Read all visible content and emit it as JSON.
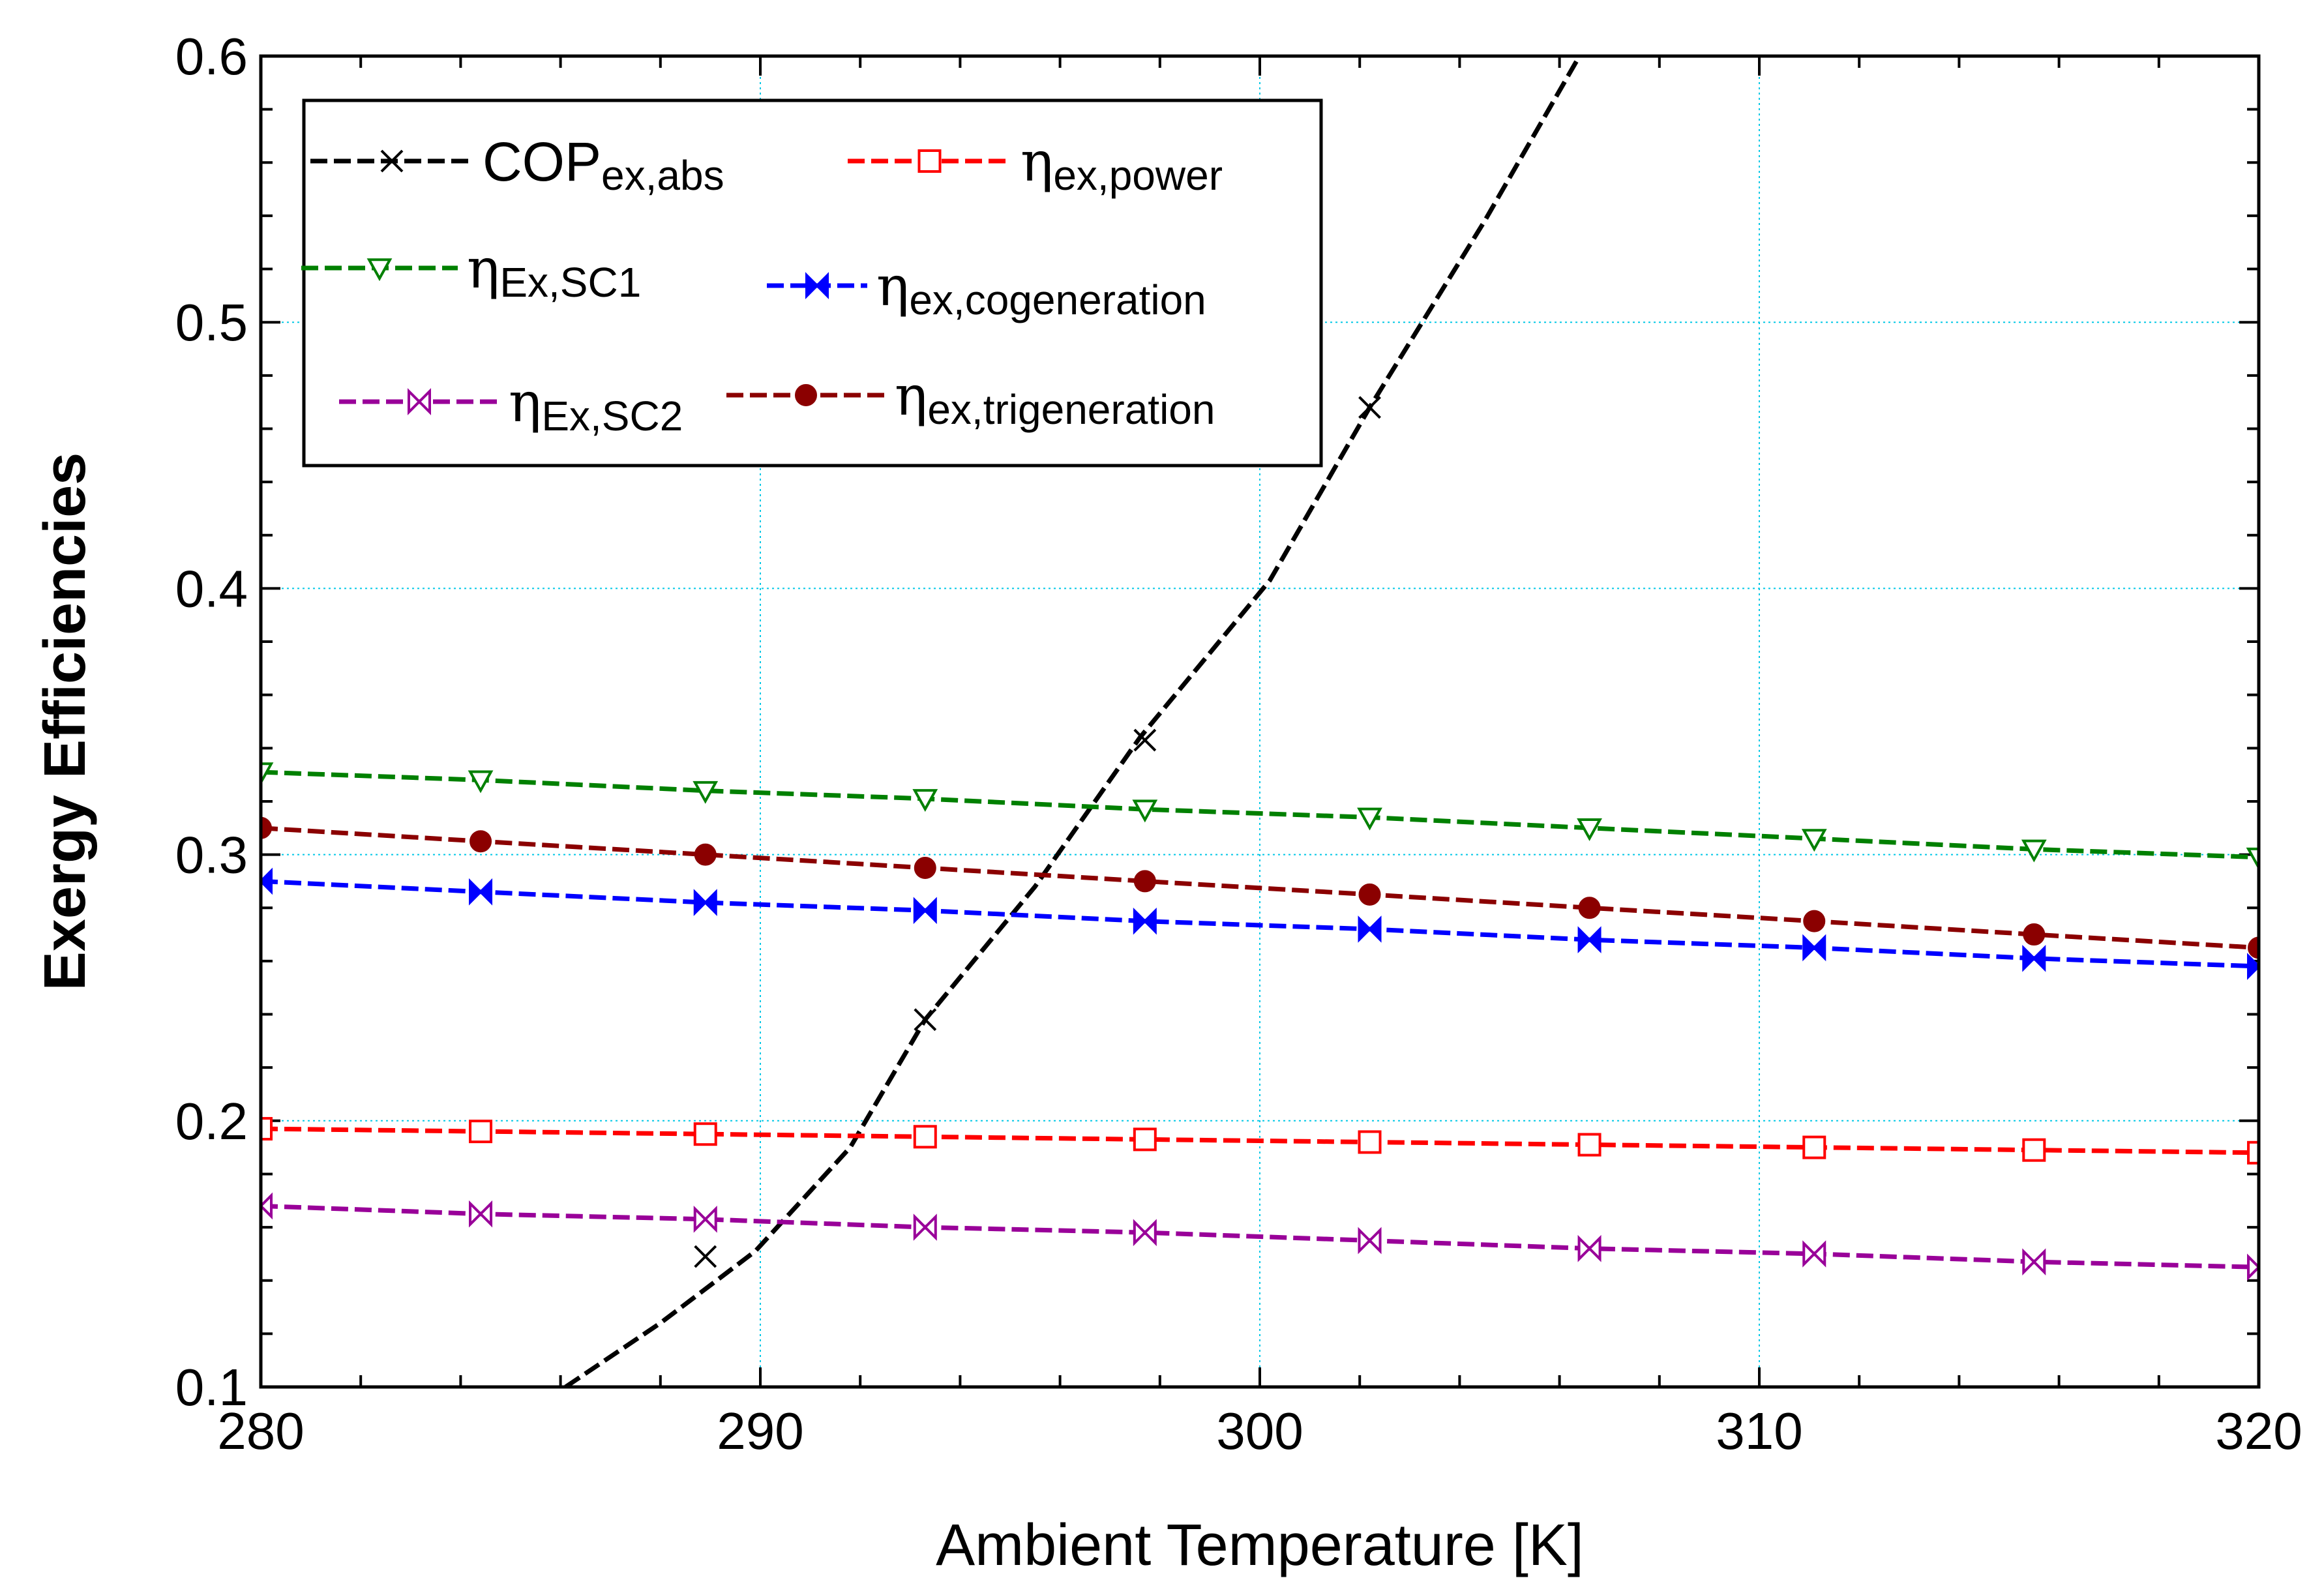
{
  "chart_data": {
    "type": "line",
    "title": "",
    "xlabel": "Ambient Temperature [K]",
    "ylabel": "Exergy Efficiencies",
    "xlim": [
      280,
      320
    ],
    "ylim": [
      0.1,
      0.6
    ],
    "xticks": [
      280,
      290,
      300,
      310,
      320
    ],
    "xtick_labels": [
      "280",
      "290",
      "300",
      "310",
      "320"
    ],
    "yticks": [
      0.1,
      0.2,
      0.3,
      0.4,
      0.5,
      0.6
    ],
    "ytick_labels": [
      "0.1",
      "0.2",
      "0.3",
      "0.4",
      "0.5",
      "0.6"
    ],
    "grid": true,
    "legend_position": "top-left",
    "series": [
      {
        "name": "COP ex,abs",
        "legend_main": "COP",
        "legend_sub": "ex,abs",
        "color": "#000000",
        "marker": "x",
        "x": [
          286.1,
          288,
          289.9,
          291.8,
          293.3,
          295.5,
          297.6,
          300.2,
          302.2,
          304.5,
          306.4
        ],
        "y": [
          0.1,
          0.124,
          0.151,
          0.19,
          0.238,
          0.288,
          0.344,
          0.403,
          0.468,
          0.538,
          0.6
        ],
        "marker_x": [
          288.9,
          293.3,
          297.7,
          302.2
        ],
        "marker_y": [
          0.149,
          0.238,
          0.343,
          0.468
        ]
      },
      {
        "name": "ηex,power",
        "legend_main": "η",
        "legend_sub": "ex,power",
        "color": "#ff0000",
        "marker": "square",
        "x": [
          280,
          284.4,
          288.9,
          293.3,
          297.7,
          302.2,
          306.6,
          311.1,
          315.5,
          320
        ],
        "y": [
          0.197,
          0.196,
          0.195,
          0.194,
          0.193,
          0.192,
          0.191,
          0.19,
          0.189,
          0.188
        ]
      },
      {
        "name": "ηEx,SC1",
        "legend_main": "η",
        "legend_sub": "Ex,SC1",
        "color": "#008000",
        "marker": "triangle-down",
        "x": [
          280,
          284.4,
          288.9,
          293.3,
          297.7,
          302.2,
          306.6,
          311.1,
          315.5,
          320
        ],
        "y": [
          0.331,
          0.328,
          0.324,
          0.321,
          0.317,
          0.314,
          0.31,
          0.306,
          0.302,
          0.299
        ]
      },
      {
        "name": "ηex,cogeneration",
        "legend_main": "η",
        "legend_sub": "ex,cogeneration",
        "color": "#0000ff",
        "marker": "bowtie",
        "x": [
          280,
          284.4,
          288.9,
          293.3,
          297.7,
          302.2,
          306.6,
          311.1,
          315.5,
          320
        ],
        "y": [
          0.29,
          0.286,
          0.282,
          0.279,
          0.275,
          0.272,
          0.268,
          0.265,
          0.261,
          0.258
        ]
      },
      {
        "name": "ηEx,SC2",
        "legend_main": "η",
        "legend_sub": "Ex,SC2",
        "color": "#990099",
        "marker": "bowtie-open",
        "x": [
          280,
          284.4,
          288.9,
          293.3,
          297.7,
          302.2,
          306.6,
          311.1,
          315.5,
          320
        ],
        "y": [
          0.168,
          0.165,
          0.163,
          0.16,
          0.158,
          0.155,
          0.152,
          0.15,
          0.147,
          0.145
        ]
      },
      {
        "name": "ηex,trigeneration",
        "legend_main": "η",
        "legend_sub": "ex,trigeneration",
        "color": "#8b0000",
        "marker": "circle",
        "x": [
          280,
          284.4,
          288.9,
          293.3,
          297.7,
          302.2,
          306.6,
          311.1,
          315.5,
          320
        ],
        "y": [
          0.31,
          0.305,
          0.3,
          0.295,
          0.29,
          0.285,
          0.28,
          0.275,
          0.27,
          0.265
        ]
      }
    ]
  }
}
